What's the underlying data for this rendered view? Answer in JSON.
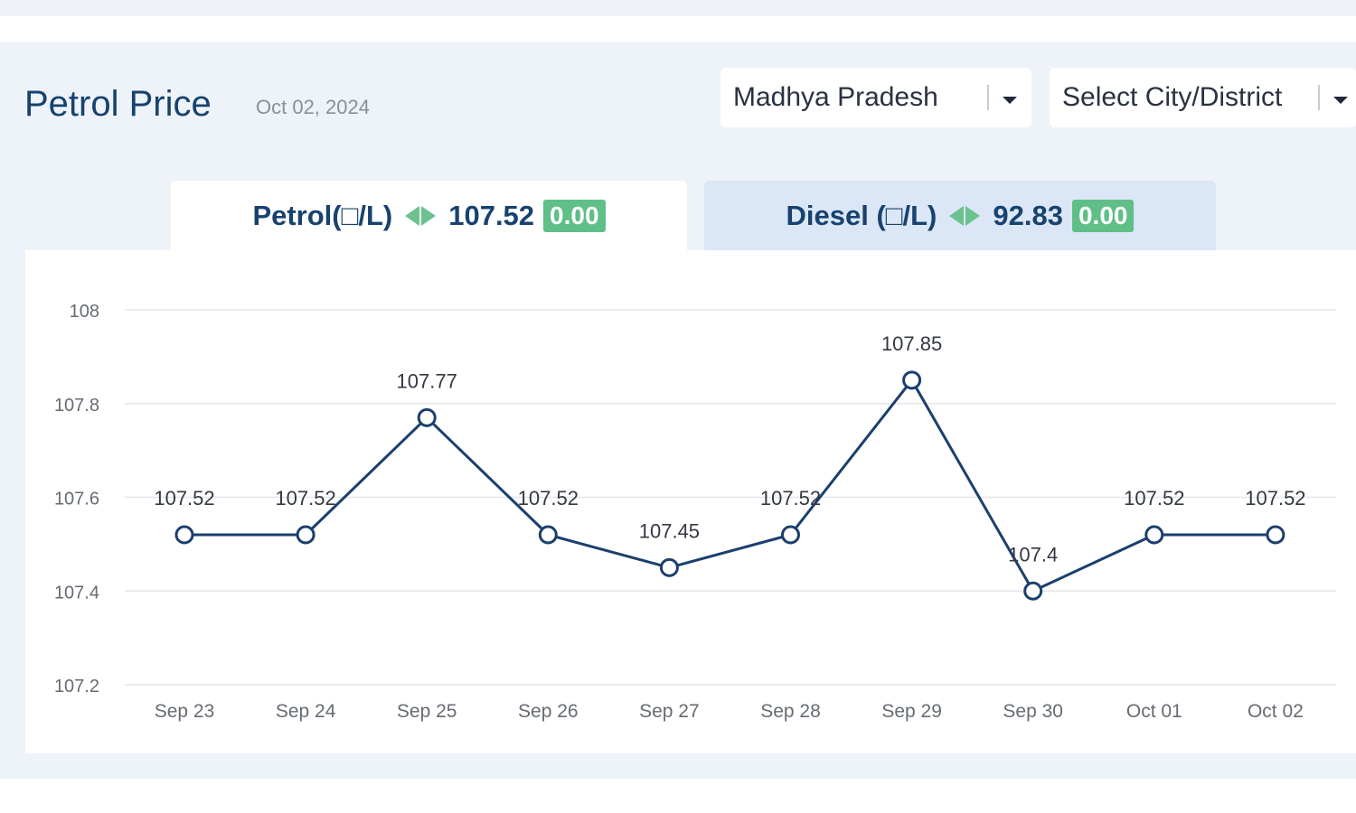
{
  "header": {
    "title": "Petrol Price",
    "date": "Oct 02, 2024"
  },
  "filters": {
    "state": "Madhya Pradesh",
    "city_placeholder": "Select City/District"
  },
  "tabs": [
    {
      "label": "Petrol(□/L)",
      "price": "107.52",
      "change": "0.00"
    },
    {
      "label": "Diesel (□/L)",
      "price": "92.83",
      "change": "0.00"
    }
  ],
  "colors": {
    "line": "#1b3f6e",
    "accent_green": "#5fbf86",
    "title": "#17426f"
  },
  "chart_data": {
    "type": "line",
    "categories": [
      "Sep 23",
      "Sep 24",
      "Sep 25",
      "Sep 26",
      "Sep 27",
      "Sep 28",
      "Sep 29",
      "Sep 30",
      "Oct 01",
      "Oct 02"
    ],
    "values": [
      107.52,
      107.52,
      107.77,
      107.52,
      107.45,
      107.52,
      107.85,
      107.4,
      107.52,
      107.52
    ],
    "value_labels": [
      "107.52",
      "107.52",
      "107.77",
      "107.52",
      "107.45",
      "107.52",
      "107.85",
      "107.4",
      "107.52",
      "107.52"
    ],
    "y_ticks": [
      "108",
      "107.8",
      "107.6",
      "107.4",
      "107.2"
    ],
    "y_tick_values": [
      108,
      107.8,
      107.6,
      107.4,
      107.2
    ],
    "ylim": [
      107.2,
      108
    ],
    "grid": true,
    "legend": "none"
  }
}
